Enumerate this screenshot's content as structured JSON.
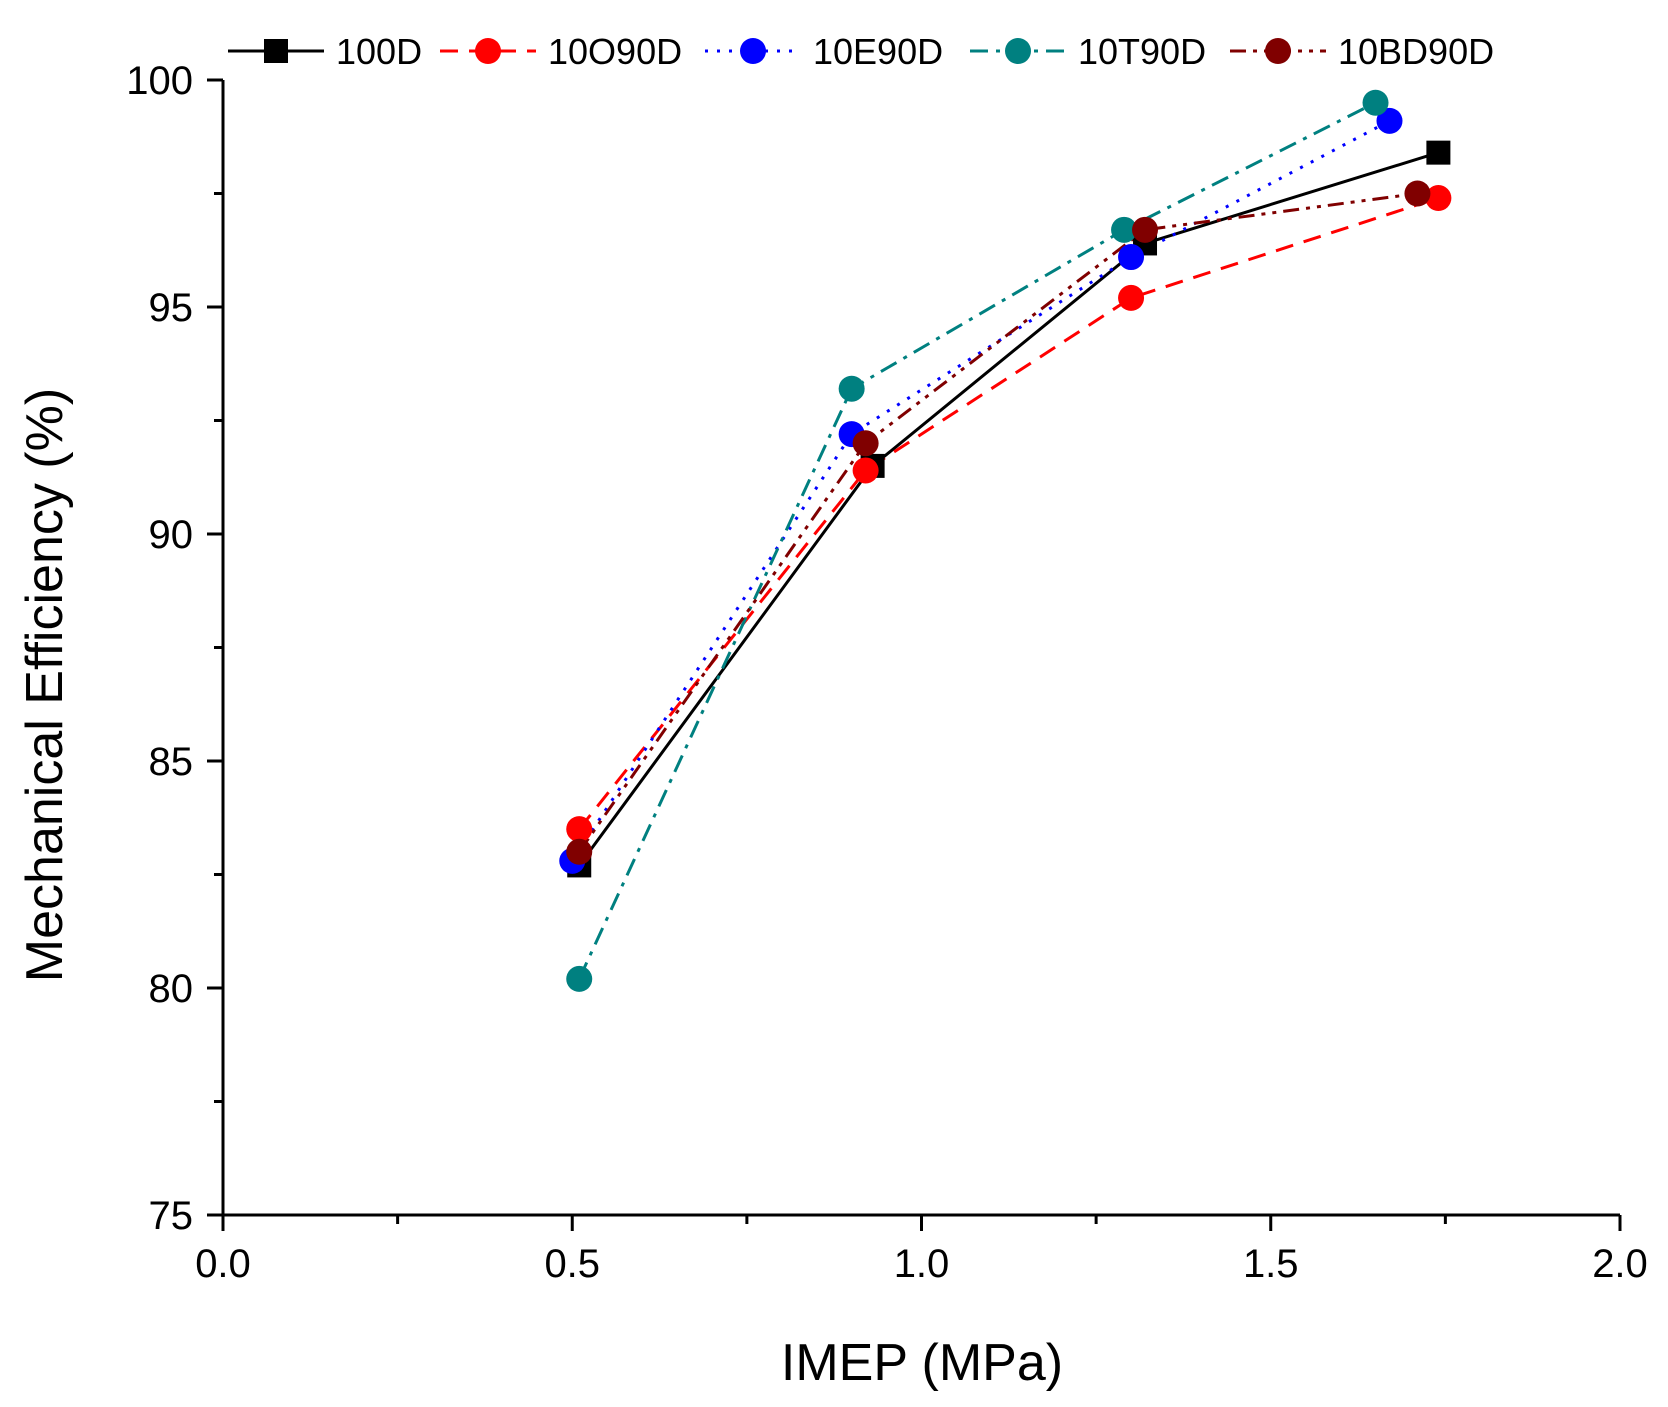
{
  "chart_data": {
    "type": "line",
    "title": "",
    "xlabel": "IMEP (MPa)",
    "ylabel": "Mechanical Efficiency (%)",
    "xlim": [
      0.0,
      2.0
    ],
    "ylim": [
      75,
      100
    ],
    "x_major_ticks": [
      0.0,
      0.5,
      1.0,
      1.5,
      2.0
    ],
    "x_tick_labels": [
      "0.0",
      "0.5",
      "1.0",
      "1.5",
      "2.0"
    ],
    "x_minor_ticks": [
      0.25,
      0.75,
      1.25,
      1.75
    ],
    "y_major_ticks": [
      75,
      80,
      85,
      90,
      95,
      100
    ],
    "y_tick_labels": [
      "75",
      "80",
      "85",
      "90",
      "95",
      "100"
    ],
    "y_minor_ticks": [
      77.5,
      82.5,
      87.5,
      92.5,
      97.5
    ],
    "legend_position": "top",
    "series": [
      {
        "name": "100D",
        "color": "#000000",
        "dash": "solid",
        "marker": "square",
        "x": [
          0.51,
          0.93,
          1.32,
          1.74
        ],
        "y": [
          82.7,
          91.5,
          96.4,
          98.4
        ]
      },
      {
        "name": "10O90D",
        "color": "#ff0000",
        "dash": "dash",
        "marker": "circle",
        "x": [
          0.51,
          0.92,
          1.3,
          1.74
        ],
        "y": [
          83.5,
          91.4,
          95.2,
          97.4
        ]
      },
      {
        "name": "10E90D",
        "color": "#0000ff",
        "dash": "dot",
        "marker": "circle",
        "x": [
          0.5,
          0.9,
          1.3,
          1.67
        ],
        "y": [
          82.8,
          92.2,
          96.1,
          99.1
        ]
      },
      {
        "name": "10T90D",
        "color": "#008080",
        "dash": "dashdot",
        "marker": "circle",
        "x": [
          0.51,
          0.9,
          1.29,
          1.65
        ],
        "y": [
          80.2,
          93.2,
          96.7,
          99.5
        ]
      },
      {
        "name": "10BD90D",
        "color": "#800000",
        "dash": "dashdotdot",
        "marker": "circle",
        "x": [
          0.51,
          0.92,
          1.32,
          1.71
        ],
        "y": [
          83.0,
          92.0,
          96.7,
          97.5
        ]
      }
    ]
  }
}
